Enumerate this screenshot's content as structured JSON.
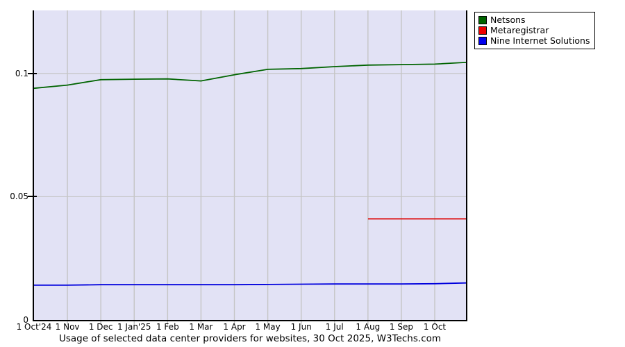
{
  "chart_data": {
    "type": "line",
    "title": "Usage of selected data center providers for websites, 30 Oct 2025, W3Techs.com",
    "xlabel": "",
    "ylabel": "",
    "x_unit": "months since 1 Oct 2024 (last point = 30 Oct 2025)",
    "x_range_months": [
      0,
      12.935
    ],
    "ylim": [
      0,
      0.1256
    ],
    "grid": true,
    "grid_color": "#c5c5c5",
    "plot_bg_color": "#e2e2f5",
    "legend_position": "top-right",
    "x_tick_labels": [
      "1 Oct'24",
      "1 Nov",
      "1 Dec",
      "1 Jan'25",
      "1 Feb",
      "1 Mar",
      "1 Apr",
      "1 May",
      "1 Jun",
      "1 Jul",
      "1 Aug",
      "1 Sep",
      "1 Oct"
    ],
    "y_ticks": [
      {
        "label": "0",
        "value": 0
      },
      {
        "label": "0.05",
        "value": 0.05
      },
      {
        "label": "0.1",
        "value": 0.1
      }
    ],
    "series": [
      {
        "name": "Netsons",
        "color": "#006400",
        "x": [
          0,
          1,
          2,
          3,
          4,
          5,
          6,
          7,
          8,
          9,
          10,
          11,
          12,
          12.935
        ],
        "values": [
          0.094,
          0.0953,
          0.0975,
          0.0977,
          0.0978,
          0.097,
          0.0995,
          0.1017,
          0.102,
          0.1028,
          0.1034,
          0.1036,
          0.1038,
          0.1045
        ]
      },
      {
        "name": "Metaregistrar",
        "color": "#dd0000",
        "x": [
          10,
          12.935
        ],
        "values": [
          0.041,
          0.041
        ]
      },
      {
        "name": "Nine Internet Solutions",
        "color": "#0000dd",
        "x": [
          0,
          1,
          2,
          3,
          4,
          5,
          6,
          7,
          8,
          9,
          10,
          11,
          12,
          12.935
        ],
        "values": [
          0.0141,
          0.0141,
          0.0143,
          0.0143,
          0.0143,
          0.0143,
          0.0143,
          0.0144,
          0.0145,
          0.0146,
          0.0146,
          0.0146,
          0.0147,
          0.015
        ]
      }
    ]
  },
  "legend": {
    "items": [
      {
        "label": "Netsons",
        "color": "#006400"
      },
      {
        "label": "Metaregistrar",
        "color": "#ee0000"
      },
      {
        "label": "Nine Internet Solutions",
        "color": "#0000ee"
      }
    ]
  }
}
